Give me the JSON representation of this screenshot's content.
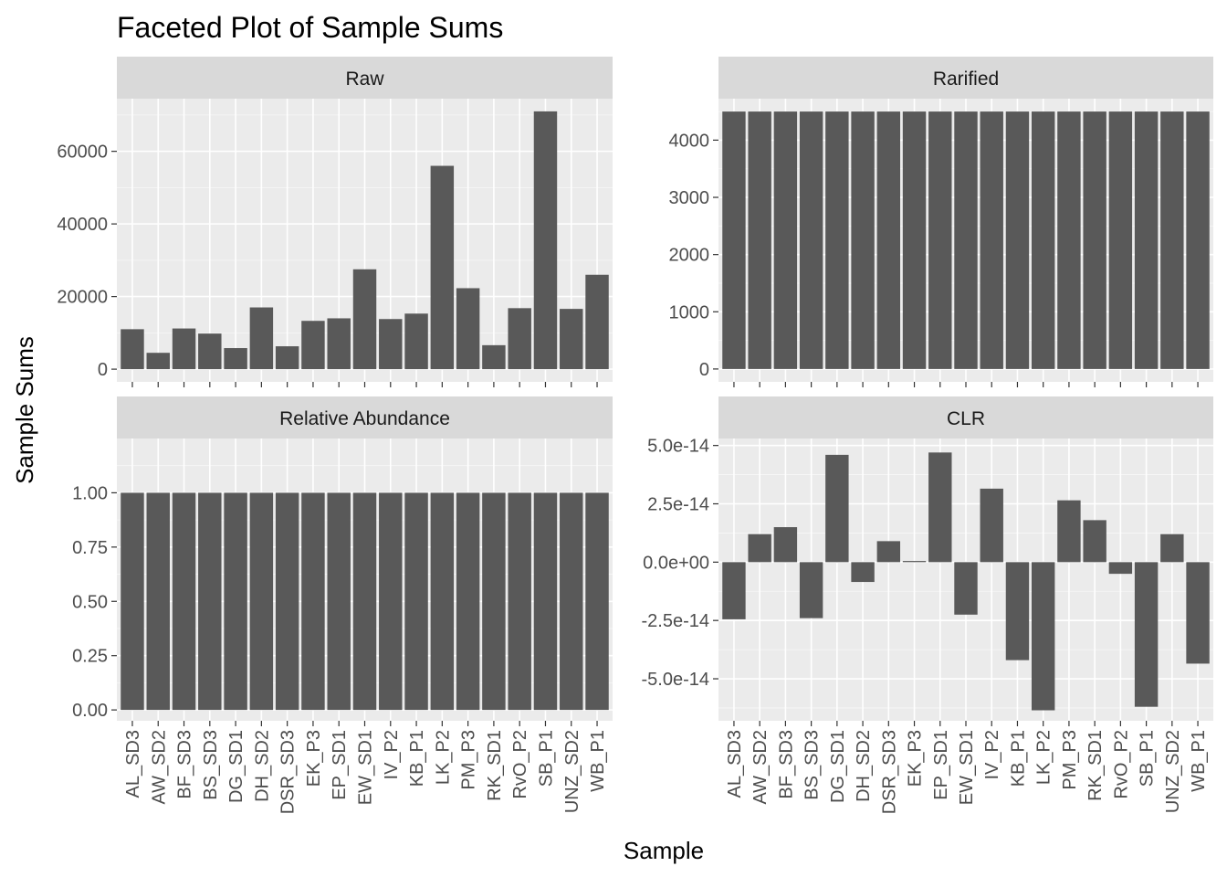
{
  "figure": {
    "title": "Faceted Plot of Sample Sums",
    "xlabel": "Sample",
    "ylabel": "Sample Sums"
  },
  "colors": {
    "bar": "#595959",
    "panel_background": "#ebebeb",
    "grid_major": "#ffffff",
    "strip_background": "#d9d9d9",
    "tick_text": "#4d4d4d"
  },
  "chart_data": [
    {
      "type": "bar",
      "facet": "Raw",
      "categories": [
        "AL_SD3",
        "AW_SD2",
        "BF_SD3",
        "BS_SD3",
        "DG_SD1",
        "DH_SD2",
        "DSR_SD3",
        "EK_P3",
        "EP_SD1",
        "EW_SD1",
        "IV_P2",
        "KB_P1",
        "LK_P2",
        "PM_P3",
        "RK_SD1",
        "RvO_P2",
        "SB_P1",
        "UNZ_SD2",
        "WB_P1"
      ],
      "values": [
        11000,
        4500,
        11200,
        9800,
        5800,
        17000,
        6300,
        13300,
        14000,
        27500,
        13800,
        15300,
        56000,
        22300,
        6600,
        16800,
        71000,
        16600,
        26000
      ],
      "ylim": [
        -3500,
        74500
      ],
      "yticks": [
        0,
        20000,
        40000,
        60000
      ],
      "ytick_labels": [
        "0",
        "20000",
        "40000",
        "60000"
      ]
    },
    {
      "type": "bar",
      "facet": "Rarified",
      "categories": [
        "AL_SD3",
        "AW_SD2",
        "BF_SD3",
        "BS_SD3",
        "DG_SD1",
        "DH_SD2",
        "DSR_SD3",
        "EK_P3",
        "EP_SD1",
        "EW_SD1",
        "IV_P2",
        "KB_P1",
        "LK_P2",
        "PM_P3",
        "RK_SD1",
        "RvO_P2",
        "SB_P1",
        "UNZ_SD2",
        "WB_P1"
      ],
      "values": [
        4500,
        4500,
        4500,
        4500,
        4500,
        4500,
        4500,
        4500,
        4500,
        4500,
        4500,
        4500,
        4500,
        4500,
        4500,
        4500,
        4500,
        4500,
        4500
      ],
      "ylim": [
        -225,
        4725
      ],
      "yticks": [
        0,
        1000,
        2000,
        3000,
        4000
      ],
      "ytick_labels": [
        "0",
        "1000",
        "2000",
        "3000",
        "4000"
      ]
    },
    {
      "type": "bar",
      "facet": "Relative Abundance",
      "categories": [
        "AL_SD3",
        "AW_SD2",
        "BF_SD3",
        "BS_SD3",
        "DG_SD1",
        "DH_SD2",
        "DSR_SD3",
        "EK_P3",
        "EP_SD1",
        "EW_SD1",
        "IV_P2",
        "KB_P1",
        "LK_P2",
        "PM_P3",
        "RK_SD1",
        "RvO_P2",
        "SB_P1",
        "UNZ_SD2",
        "WB_P1"
      ],
      "values": [
        1,
        1,
        1,
        1,
        1,
        1,
        1,
        1,
        1,
        1,
        1,
        1,
        1,
        1,
        1,
        1,
        1,
        1,
        1
      ],
      "ylim": [
        -0.05,
        1.25
      ],
      "yticks": [
        0,
        0.25,
        0.5,
        0.75,
        1
      ],
      "ytick_labels": [
        "0.00",
        "0.25",
        "0.50",
        "0.75",
        "1.00"
      ]
    },
    {
      "type": "bar",
      "facet": "CLR",
      "categories": [
        "AL_SD3",
        "AW_SD2",
        "BF_SD3",
        "BS_SD3",
        "DG_SD1",
        "DH_SD2",
        "DSR_SD3",
        "EK_P3",
        "EP_SD1",
        "EW_SD1",
        "IV_P2",
        "KB_P1",
        "LK_P2",
        "PM_P3",
        "RK_SD1",
        "RvO_P2",
        "SB_P1",
        "UNZ_SD2",
        "WB_P1"
      ],
      "values": [
        -2.45e-14,
        1.2e-14,
        1.5e-14,
        -2.4e-14,
        4.6e-14,
        -8.5e-15,
        9e-15,
        5e-16,
        4.7e-14,
        -2.25e-14,
        3.15e-14,
        -4.2e-14,
        -6.35e-14,
        2.65e-14,
        1.8e-14,
        -5e-15,
        -6.2e-14,
        1.2e-14,
        -4.35e-14
      ],
      "ylim": [
        -6.8e-14,
        5.3e-14
      ],
      "yticks": [
        -5e-14,
        -2.5e-14,
        0,
        2.5e-14,
        5e-14
      ],
      "ytick_labels": [
        "-5.0e-14",
        "-2.5e-14",
        "0.0e+00",
        "2.5e-14",
        "5.0e-14"
      ]
    }
  ]
}
